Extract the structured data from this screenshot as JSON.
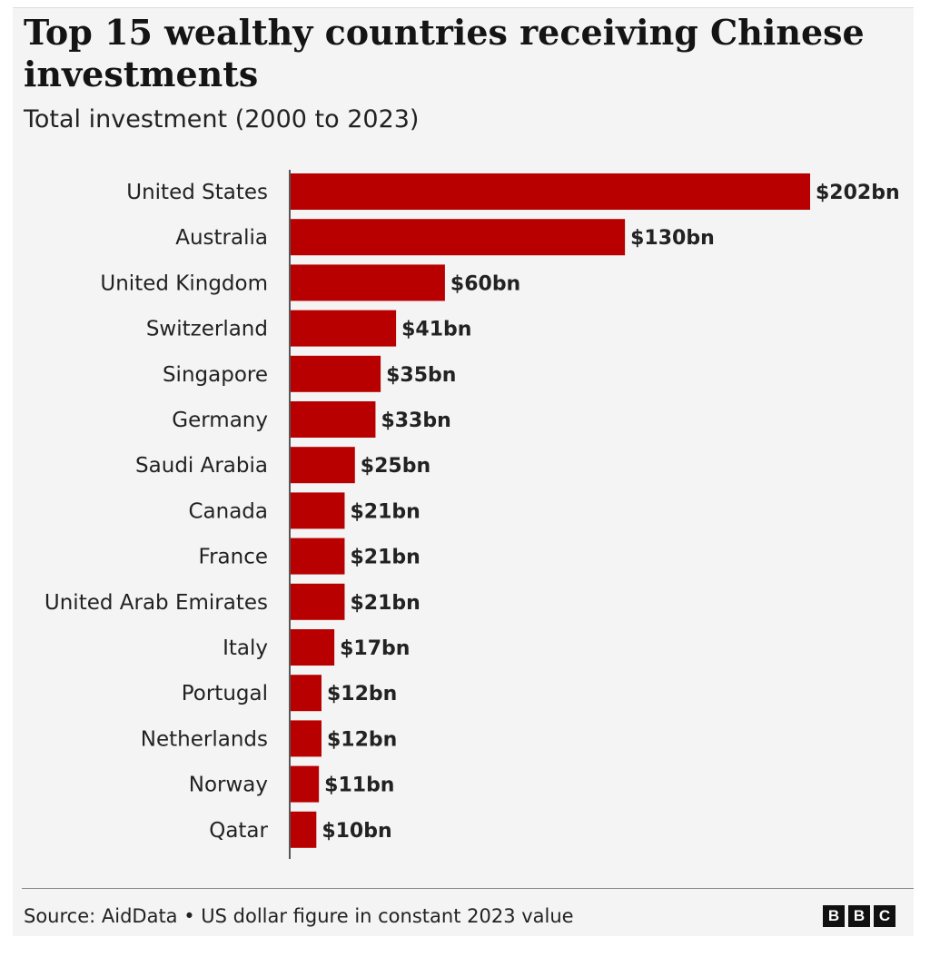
{
  "header": {
    "title": "Top 15 wealthy countries receiving Chinese investments",
    "subtitle": "Total investment (2000 to 2023)"
  },
  "footer": {
    "source": "Source: AidData • US dollar figure in constant 2023 value",
    "logo_letters": [
      "B",
      "B",
      "C"
    ]
  },
  "colors": {
    "bar": "#b80000",
    "background": "#f4f4f4"
  },
  "chart_data": {
    "type": "bar",
    "orientation": "horizontal",
    "title": "Top 15 wealthy countries receiving Chinese investments",
    "subtitle": "Total investment (2000 to 2023)",
    "unit": "US$ billion",
    "categories": [
      "United States",
      "Australia",
      "United Kingdom",
      "Switzerland",
      "Singapore",
      "Germany",
      "Saudi Arabia",
      "Canada",
      "France",
      "United Arab Emirates",
      "Italy",
      "Portugal",
      "Netherlands",
      "Norway",
      "Qatar"
    ],
    "values": [
      202,
      130,
      60,
      41,
      35,
      33,
      25,
      21,
      21,
      21,
      17,
      12,
      12,
      11,
      10
    ],
    "value_labels": [
      "$202bn",
      "$130bn",
      "$60bn",
      "$41bn",
      "$35bn",
      "$33bn",
      "$25bn",
      "$21bn",
      "$21bn",
      "$21bn",
      "$17bn",
      "$12bn",
      "$12bn",
      "$11bn",
      "$10bn"
    ],
    "xlim": [
      0,
      202
    ],
    "grid": false,
    "legend": "none"
  }
}
